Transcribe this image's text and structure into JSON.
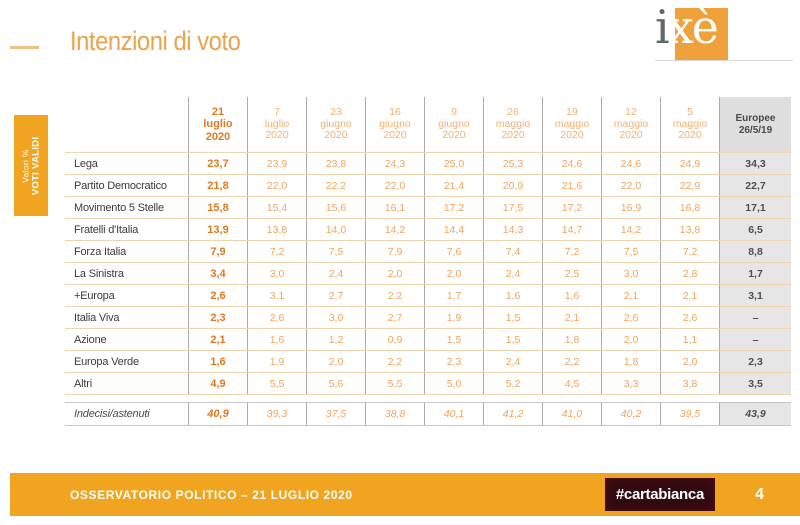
{
  "page": {
    "title": "Intenzioni di voto",
    "logo_i": "i",
    "logo_xe": "xè",
    "page_number": "4"
  },
  "sidebar": {
    "line1": "Valori %",
    "line2": "VOTI VALIDI"
  },
  "footer": {
    "text": "OSSERVATORIO POLITICO – 21 LUGLIO 2020",
    "badge": "#cartabianca"
  },
  "colors": {
    "strong_orange": "#e1791f",
    "light_orange": "#efa65c",
    "header_light_orange": "#f0b173",
    "title_orange": "#eda24c",
    "bar_orange": "#f0a420",
    "logo_orange": "#efa13b",
    "dash_orange": "#f3c083",
    "gray_header_bg": "#dedede",
    "gray_cell_bg": "#e6e6e6",
    "border_vertical": "#ababab",
    "border_horizontal": "#f0d4ae",
    "border_undecided": "#c6c6c6",
    "badge_bg": "#310a10"
  },
  "chart_data": {
    "type": "table",
    "title": "Intenzioni di voto",
    "unit": "Valori % voti validi",
    "columns": [
      {
        "lines": [
          "21",
          "luglio",
          "2020"
        ],
        "style": "first"
      },
      {
        "lines": [
          "7",
          "luglio",
          "2020"
        ],
        "style": "light"
      },
      {
        "lines": [
          "23",
          "giugno",
          "2020"
        ],
        "style": "light"
      },
      {
        "lines": [
          "16",
          "giugno",
          "2020"
        ],
        "style": "light"
      },
      {
        "lines": [
          "9",
          "giugno",
          "2020"
        ],
        "style": "light"
      },
      {
        "lines": [
          "26",
          "maggio",
          "2020"
        ],
        "style": "light"
      },
      {
        "lines": [
          "19",
          "maggio",
          "2020"
        ],
        "style": "light"
      },
      {
        "lines": [
          "12",
          "maggio",
          "2020"
        ],
        "style": "light"
      },
      {
        "lines": [
          "5",
          "maggio",
          "2020"
        ],
        "style": "light"
      },
      {
        "lines": [
          "Europee",
          "26/5/19"
        ],
        "style": "euro"
      }
    ],
    "rows": [
      {
        "label": "Lega",
        "values": [
          "23,7",
          "23,9",
          "23,8",
          "24,3",
          "25,0",
          "25,3",
          "24,6",
          "24,6",
          "24,9"
        ],
        "europee": "34,3"
      },
      {
        "label": "Partito Democratico",
        "values": [
          "21,8",
          "22,0",
          "22,2",
          "22,0",
          "21,4",
          "20,9",
          "21,6",
          "22,0",
          "22,9"
        ],
        "europee": "22,7"
      },
      {
        "label": "Movimento 5 Stelle",
        "values": [
          "15,8",
          "15,4",
          "15,6",
          "16,1",
          "17,2",
          "17,5",
          "17,2",
          "16,9",
          "16,8"
        ],
        "europee": "17,1"
      },
      {
        "label": "Fratelli d'Italia",
        "values": [
          "13,9",
          "13,8",
          "14,0",
          "14,2",
          "14,4",
          "14,3",
          "14,7",
          "14,2",
          "13,8"
        ],
        "europee": "6,5"
      },
      {
        "label": "Forza Italia",
        "values": [
          "7,9",
          "7,2",
          "7,5",
          "7,9",
          "7,6",
          "7,4",
          "7,2",
          "7,5",
          "7,2"
        ],
        "europee": "8,8"
      },
      {
        "label": "La Sinistra",
        "values": [
          "3,4",
          "3,0",
          "2,4",
          "2,0",
          "2,0",
          "2,4",
          "2,5",
          "3,0",
          "2,8"
        ],
        "europee": "1,7"
      },
      {
        "label": "+Europa",
        "values": [
          "2,6",
          "3,1",
          "2,7",
          "2,2",
          "1,7",
          "1,6",
          "1,6",
          "2,1",
          "2,1"
        ],
        "europee": "3,1"
      },
      {
        "label": "Italia Viva",
        "values": [
          "2,3",
          "2,6",
          "3,0",
          "2,7",
          "1,9",
          "1,5",
          "2,1",
          "2,6",
          "2,6"
        ],
        "europee": "–"
      },
      {
        "label": "Azione",
        "values": [
          "2,1",
          "1,6",
          "1,2",
          "0,9",
          "1,5",
          "1,5",
          "1,8",
          "2,0",
          "1,1"
        ],
        "europee": "–"
      },
      {
        "label": "Europa Verde",
        "values": [
          "1,6",
          "1,9",
          "2,0",
          "2,2",
          "2,3",
          "2,4",
          "2,2",
          "1,8",
          "2,0"
        ],
        "europee": "2,3"
      },
      {
        "label": "Altri",
        "values": [
          "4,9",
          "5,5",
          "5,6",
          "5,5",
          "5,0",
          "5,2",
          "4,5",
          "3,3",
          "3,8"
        ],
        "europee": "3,5"
      }
    ],
    "undecided_row": {
      "label": "Indecisi/astenuti",
      "values": [
        "40,9",
        "39,3",
        "37,5",
        "38,8",
        "40,1",
        "41,2",
        "41,0",
        "40,2",
        "39,5"
      ],
      "europee": "43,9"
    }
  }
}
